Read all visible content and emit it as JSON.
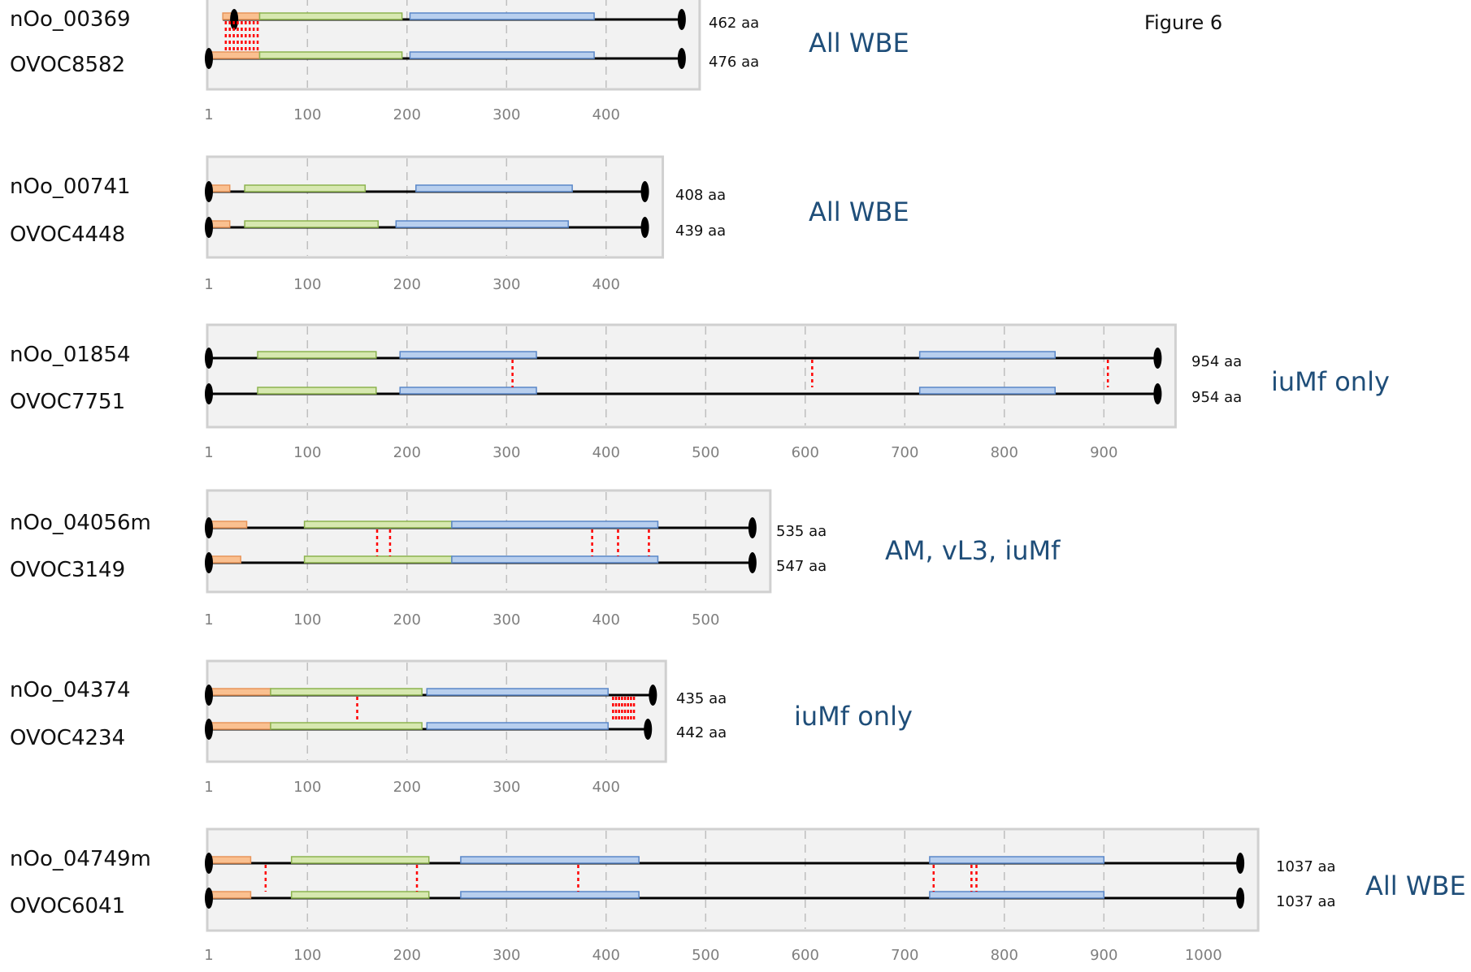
{
  "figure_label": "Figure 6",
  "colors": {
    "signal_peptide": "#fac090",
    "domain_green": "#d7e8b0",
    "domain_blue": "#b8cfee",
    "variant_marker": "#ff0000",
    "backbone": "#000000",
    "panel_background": "#f2f2f2",
    "panel_border": "#d0d0d0",
    "category_text": "#1f4e79"
  },
  "chart_data": [
    {
      "type": "protein-domain-alignment",
      "genes": [
        "nOo_00369",
        "OVOC8582"
      ],
      "lengths": [
        "462 aa",
        "476 aa"
      ],
      "category": "All WBE",
      "axis_ticks": [
        "1",
        "100",
        "200",
        "300",
        "400"
      ],
      "axis_max": 476,
      "tracks": [
        {
          "start": 15,
          "end": 476,
          "domains": [
            {
              "kind": "signal",
              "start": 15,
              "end": 52
            },
            {
              "kind": "green",
              "start": 52,
              "end": 195
            },
            {
              "kind": "blue",
              "start": 203,
              "end": 388
            }
          ]
        },
        {
          "start": 1,
          "end": 476,
          "domains": [
            {
              "kind": "signal",
              "start": 1,
              "end": 52
            },
            {
              "kind": "green",
              "start": 52,
              "end": 195
            },
            {
              "kind": "blue",
              "start": 203,
              "end": 388
            }
          ]
        }
      ],
      "variants": [
        18,
        22,
        26,
        30,
        34,
        38,
        42,
        46,
        50
      ]
    },
    {
      "type": "protein-domain-alignment",
      "genes": [
        "nOo_00741",
        "OVOC4448"
      ],
      "lengths": [
        "408 aa",
        "439 aa"
      ],
      "category": "All WBE",
      "axis_ticks": [
        "1",
        "100",
        "200",
        "300",
        "400"
      ],
      "axis_max": 439,
      "tracks": [
        {
          "start": 1,
          "end": 439,
          "domains": [
            {
              "kind": "signal",
              "start": 1,
              "end": 22
            },
            {
              "kind": "green",
              "start": 37,
              "end": 158
            },
            {
              "kind": "blue",
              "start": 209,
              "end": 366
            }
          ]
        },
        {
          "start": 1,
          "end": 439,
          "domains": [
            {
              "kind": "signal",
              "start": 1,
              "end": 22
            },
            {
              "kind": "green",
              "start": 37,
              "end": 171
            },
            {
              "kind": "blue",
              "start": 189,
              "end": 362
            }
          ]
        }
      ],
      "variants": []
    },
    {
      "type": "protein-domain-alignment",
      "genes": [
        "nOo_01854",
        "OVOC7751"
      ],
      "lengths": [
        "954 aa",
        "954 aa"
      ],
      "category": "iuMf only",
      "axis_ticks": [
        "1",
        "100",
        "200",
        "300",
        "400",
        "500",
        "600",
        "700",
        "800",
        "900"
      ],
      "axis_max": 954,
      "tracks": [
        {
          "start": 1,
          "end": 954,
          "domains": [
            {
              "kind": "green",
              "start": 50,
              "end": 169
            },
            {
              "kind": "blue",
              "start": 193,
              "end": 330
            },
            {
              "kind": "blue",
              "start": 715,
              "end": 851
            }
          ]
        },
        {
          "start": 1,
          "end": 954,
          "domains": [
            {
              "kind": "green",
              "start": 50,
              "end": 169
            },
            {
              "kind": "blue",
              "start": 193,
              "end": 330
            },
            {
              "kind": "blue",
              "start": 715,
              "end": 851
            }
          ]
        }
      ],
      "variants": [
        306,
        607,
        904
      ]
    },
    {
      "type": "protein-domain-alignment",
      "genes": [
        "nOo_04056m",
        "OVOC3149"
      ],
      "lengths": [
        "535 aa",
        "547 aa"
      ],
      "category": "AM, vL3, iuMf",
      "axis_ticks": [
        "1",
        "100",
        "200",
        "300",
        "400",
        "500"
      ],
      "axis_max": 547,
      "tracks": [
        {
          "start": 1,
          "end": 547,
          "domains": [
            {
              "kind": "signal",
              "start": 1,
              "end": 39
            },
            {
              "kind": "green",
              "start": 97,
              "end": 245
            },
            {
              "kind": "blue",
              "start": 245,
              "end": 452
            }
          ]
        },
        {
          "start": 1,
          "end": 547,
          "domains": [
            {
              "kind": "signal",
              "start": 1,
              "end": 33
            },
            {
              "kind": "green",
              "start": 97,
              "end": 245
            },
            {
              "kind": "blue",
              "start": 245,
              "end": 452
            }
          ]
        }
      ],
      "variants": [
        170,
        183,
        386,
        412,
        443
      ]
    },
    {
      "type": "protein-domain-alignment",
      "genes": [
        "nOo_04374",
        "OVOC4234"
      ],
      "lengths": [
        "435 aa",
        "442 aa"
      ],
      "category": "iuMf only",
      "axis_ticks": [
        "1",
        "100",
        "200",
        "300",
        "400"
      ],
      "axis_max": 442,
      "tracks": [
        {
          "start": 1,
          "end": 447,
          "domains": [
            {
              "kind": "signal",
              "start": 1,
              "end": 63
            },
            {
              "kind": "green",
              "start": 63,
              "end": 215
            },
            {
              "kind": "blue",
              "start": 220,
              "end": 402
            }
          ]
        },
        {
          "start": 1,
          "end": 442,
          "domains": [
            {
              "kind": "signal",
              "start": 1,
              "end": 63
            },
            {
              "kind": "green",
              "start": 63,
              "end": 215
            },
            {
              "kind": "blue",
              "start": 220,
              "end": 402
            }
          ]
        }
      ],
      "variants": [
        150,
        407,
        410,
        413,
        416,
        419,
        422,
        425,
        428
      ]
    },
    {
      "type": "protein-domain-alignment",
      "genes": [
        "nOo_04749m",
        "OVOC6041"
      ],
      "lengths": [
        "1037 aa",
        "1037 aa"
      ],
      "category": "All WBE",
      "axis_ticks": [
        "1",
        "100",
        "200",
        "300",
        "400",
        "500",
        "600",
        "700",
        "800",
        "900",
        "1000"
      ],
      "axis_max": 1037,
      "tracks": [
        {
          "start": 1,
          "end": 1037,
          "domains": [
            {
              "kind": "signal",
              "start": 1,
              "end": 43
            },
            {
              "kind": "green",
              "start": 84,
              "end": 222
            },
            {
              "kind": "blue",
              "start": 254,
              "end": 433
            },
            {
              "kind": "blue",
              "start": 725,
              "end": 900
            }
          ]
        },
        {
          "start": 1,
          "end": 1037,
          "domains": [
            {
              "kind": "signal",
              "start": 1,
              "end": 43
            },
            {
              "kind": "green",
              "start": 84,
              "end": 222
            },
            {
              "kind": "blue",
              "start": 254,
              "end": 433
            },
            {
              "kind": "blue",
              "start": 725,
              "end": 900
            }
          ]
        }
      ],
      "variants": [
        58,
        210,
        372,
        729,
        767,
        772
      ]
    }
  ]
}
